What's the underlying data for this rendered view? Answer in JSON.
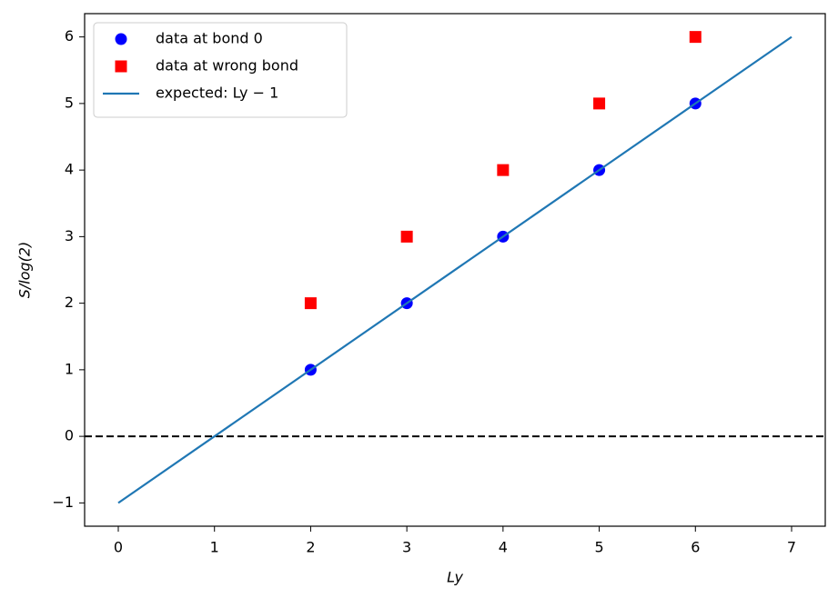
{
  "chart_data": {
    "type": "scatter",
    "xlabel": "Ly",
    "ylabel": "S/log(2)",
    "xlim": [
      -0.35,
      7.35
    ],
    "ylim": [
      -1.35,
      6.35
    ],
    "xticks": [
      0,
      1,
      2,
      3,
      4,
      5,
      6,
      7
    ],
    "yticks": [
      {
        "value": -1,
        "label": "−1"
      },
      0,
      1,
      2,
      3,
      4,
      5,
      6
    ],
    "legend": "upper left",
    "reference_lines": [
      {
        "y": 0,
        "color": "#000000",
        "style": "dashed"
      }
    ],
    "series": [
      {
        "name": "data at bond 0",
        "color": "#0000ff",
        "marker": "circle",
        "x": [
          2,
          3,
          4,
          5,
          6
        ],
        "values": [
          1,
          2,
          3,
          4,
          5
        ]
      },
      {
        "name": "data at wrong bond",
        "color": "#ff0000",
        "marker": "square",
        "x": [
          2,
          3,
          4,
          5,
          6
        ],
        "values": [
          2,
          3,
          4,
          5,
          6
        ]
      },
      {
        "name": "expected: Ly − 1",
        "color": "#1f77b4",
        "marker": "line",
        "x": [
          0,
          7
        ],
        "values": [
          -1,
          6
        ]
      }
    ]
  }
}
